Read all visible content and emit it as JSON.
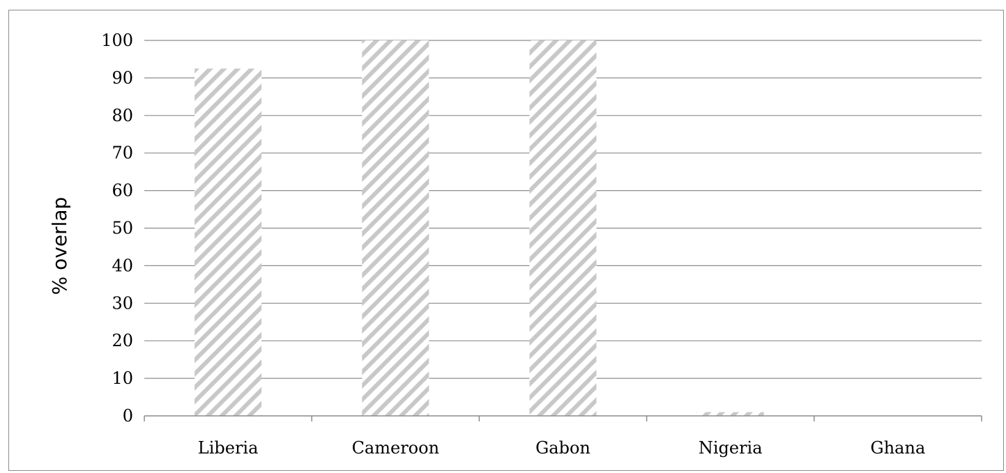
{
  "chart_data": {
    "type": "bar",
    "categories": [
      "Liberia",
      "Cameroon",
      "Gabon",
      "Nigeria",
      "Ghana"
    ],
    "values": [
      92.5,
      100,
      100,
      1,
      0
    ],
    "title": "",
    "xlabel": "",
    "ylabel": "% overlap",
    "ylim": [
      0,
      100
    ],
    "yticks": [
      0,
      10,
      20,
      30,
      40,
      50,
      60,
      70,
      80,
      90,
      100
    ],
    "grid": true,
    "legend": "none",
    "colors": {
      "bar_fill": "#ffffff",
      "bar_hatch": "#c8c8c8",
      "gridline": "#8c8c8c",
      "axis": "#8c8c8c",
      "text": "#000000"
    }
  }
}
